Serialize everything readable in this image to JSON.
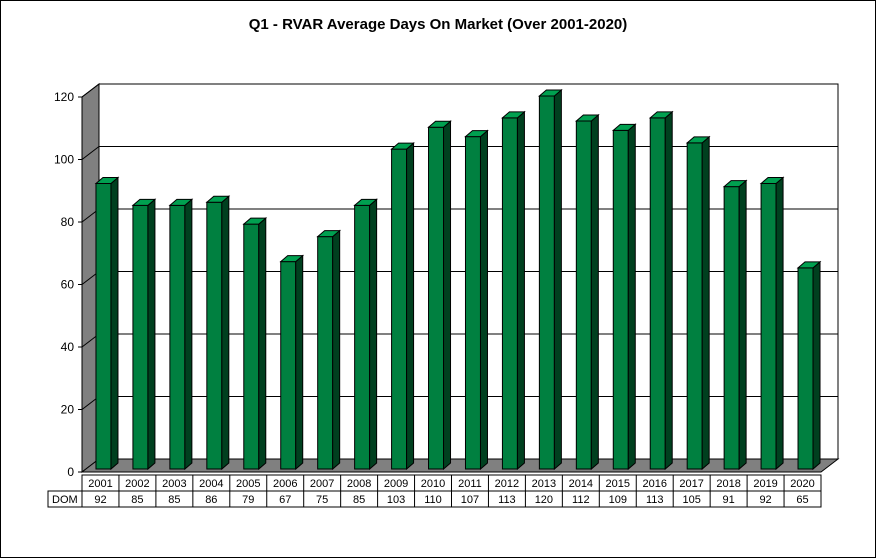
{
  "chart_data": {
    "type": "bar",
    "title": "Q1 - RVAR Average Days On Market (Over 2001-2020)",
    "categories": [
      "2001",
      "2002",
      "2003",
      "2004",
      "2005",
      "2006",
      "2007",
      "2008",
      "2009",
      "2010",
      "2011",
      "2012",
      "2013",
      "2014",
      "2015",
      "2016",
      "2017",
      "2018",
      "2019",
      "2020"
    ],
    "series": [
      {
        "name": "DOM",
        "values": [
          92,
          85,
          85,
          86,
          79,
          67,
          75,
          85,
          103,
          110,
          107,
          113,
          120,
          112,
          109,
          113,
          105,
          91,
          92,
          65
        ]
      }
    ],
    "ylim": [
      0,
      120
    ],
    "yticks": [
      0,
      20,
      40,
      60,
      80,
      100,
      120
    ],
    "grid": true,
    "legend": "none",
    "data_table": true,
    "bar_color": "#008040",
    "bar_side_color": "#00401f",
    "bar_top_color": "#00a050",
    "wall_color": "#808080"
  }
}
